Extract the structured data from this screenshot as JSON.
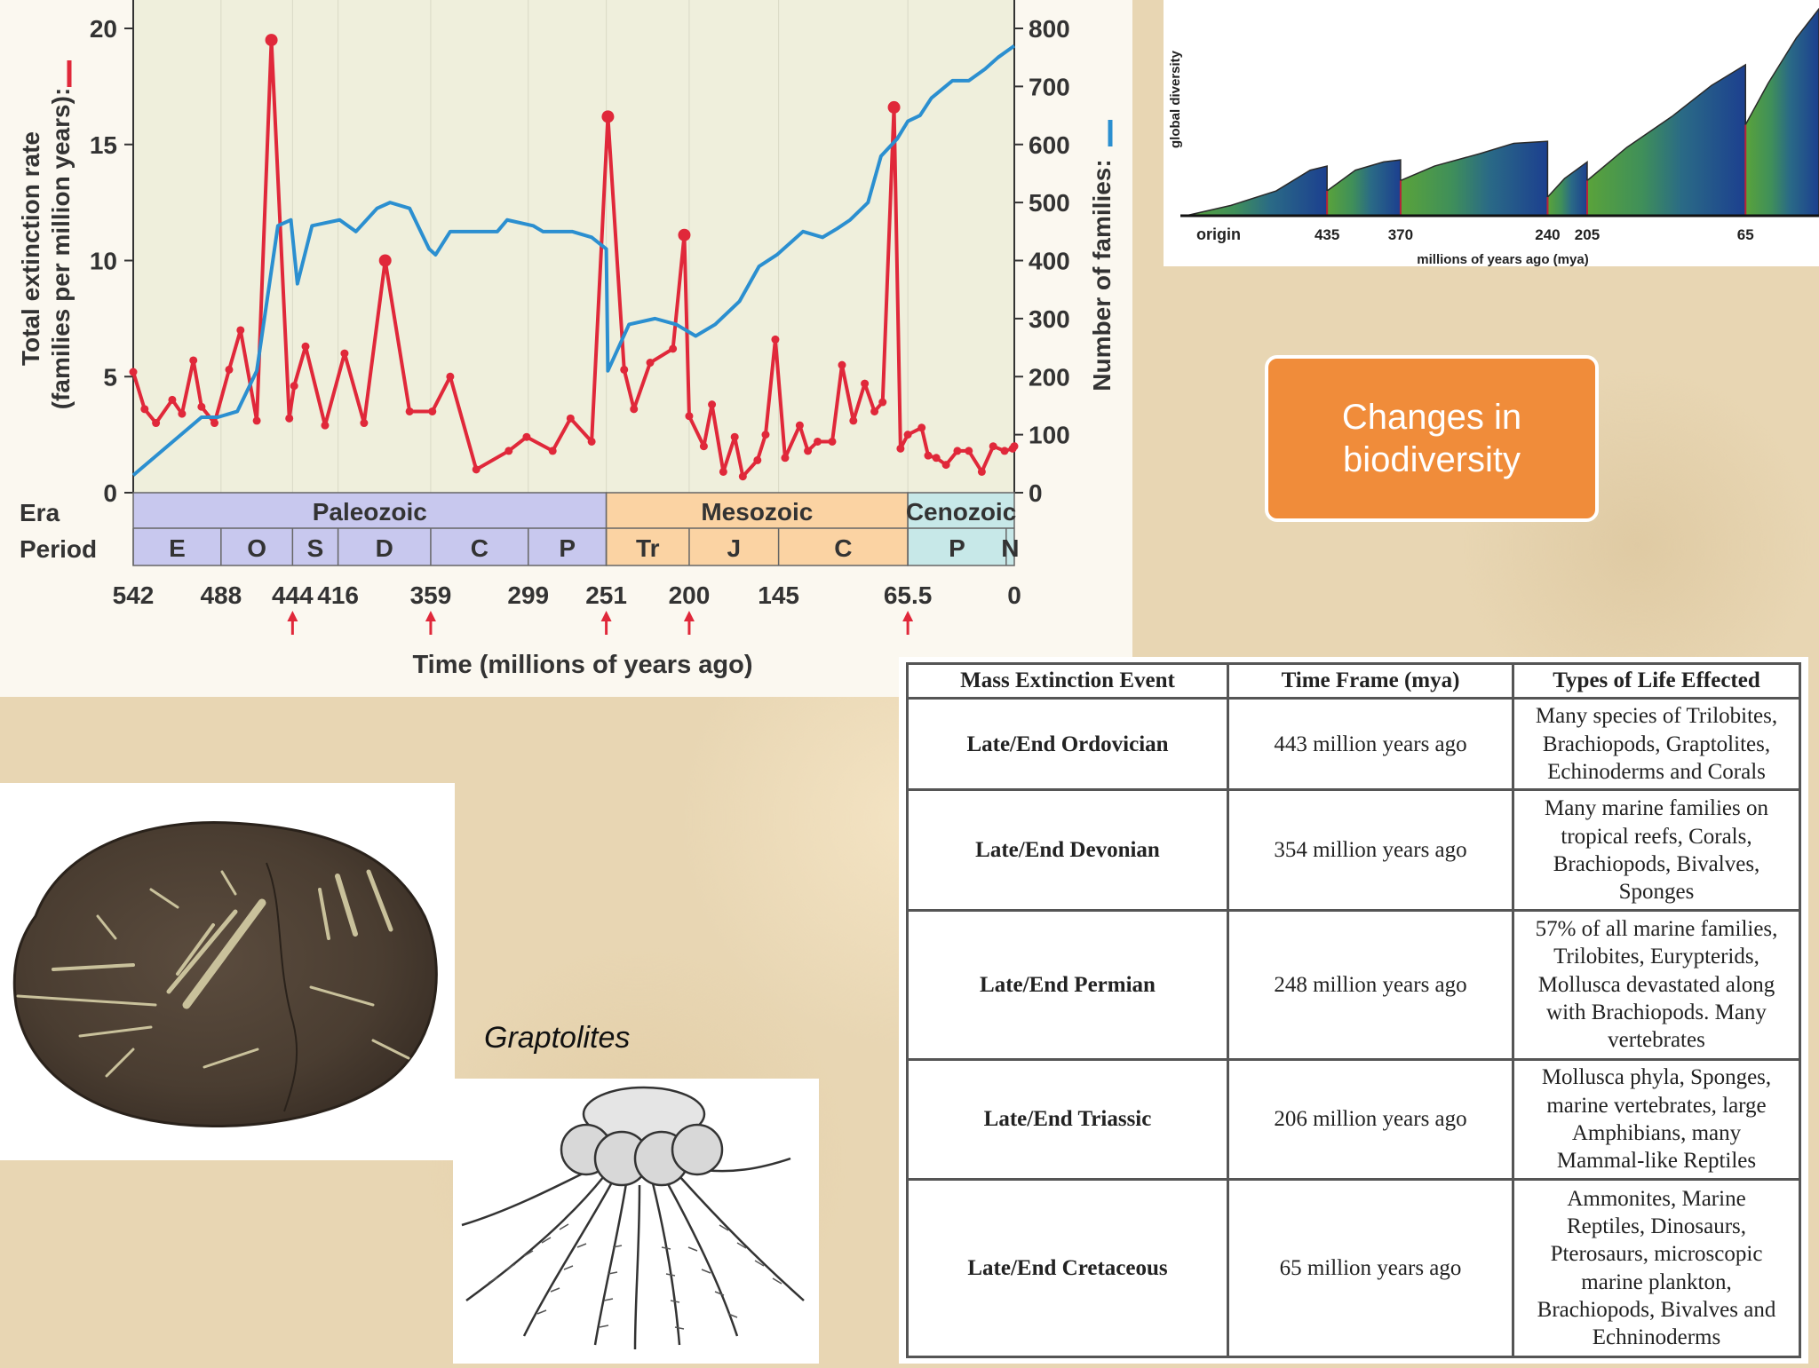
{
  "chart_data": [
    {
      "type": "line",
      "xlabel": "Time (millions of years ago)",
      "ylabel_left": [
        "Total extinction rate",
        "(families per million years):"
      ],
      "ylabel_right": "Number of families:",
      "x_ticks": [
        "542",
        "488",
        "444",
        "416",
        "359",
        "299",
        "251",
        "200",
        "145",
        "65.5",
        "0"
      ],
      "y_left_ticks": [
        "0",
        "5",
        "10",
        "15",
        "20"
      ],
      "y_right_ticks": [
        "0",
        "100",
        "200",
        "300",
        "400",
        "500",
        "600",
        "700",
        "800"
      ],
      "xlim": [
        542,
        0
      ],
      "ylim_left": [
        0,
        20
      ],
      "ylim_right": [
        0,
        800
      ],
      "arrows_at": [
        444,
        359,
        251,
        200,
        65.5
      ],
      "era_row_label": "Era",
      "period_row_label": "Period",
      "eras": [
        {
          "name": "Paleozoic",
          "start": 542,
          "end": 251,
          "color": "#c8c8ee"
        },
        {
          "name": "Mesozoic",
          "start": 251,
          "end": 65.5,
          "color": "#fbd3a3"
        },
        {
          "name": "Cenozoic",
          "start": 65.5,
          "end": 0,
          "color": "#c7e8e8"
        }
      ],
      "periods": [
        {
          "name": "E",
          "start": 542,
          "end": 488
        },
        {
          "name": "O",
          "start": 488,
          "end": 444
        },
        {
          "name": "S",
          "start": 444,
          "end": 416
        },
        {
          "name": "D",
          "start": 416,
          "end": 359
        },
        {
          "name": "C",
          "start": 359,
          "end": 299
        },
        {
          "name": "P",
          "start": 299,
          "end": 251
        },
        {
          "name": "Tr",
          "start": 251,
          "end": 200
        },
        {
          "name": "J",
          "start": 200,
          "end": 145
        },
        {
          "name": "C",
          "start": 145,
          "end": 65.5
        },
        {
          "name": "P",
          "start": 65.5,
          "end": 5
        },
        {
          "name": "N",
          "start": 5,
          "end": 0
        }
      ],
      "series": [
        {
          "color": "#e0283a",
          "axis": "left",
          "markers": true,
          "x": [
            542,
            535,
            528,
            518,
            512,
            505,
            500,
            492,
            483,
            476,
            466,
            457,
            446,
            443,
            436,
            424,
            412,
            400,
            387,
            372,
            358,
            347,
            331,
            311,
            300,
            284,
            273,
            260,
            250,
            240,
            234,
            224,
            210,
            203,
            200,
            191,
            186,
            179,
            172,
            167,
            158,
            153,
            147,
            141,
            132,
            127,
            121,
            112,
            106,
            99,
            92,
            86,
            81,
            74,
            70,
            65.5,
            57,
            53,
            48,
            42,
            35,
            28,
            20,
            13,
            6,
            1,
            0
          ],
          "values": [
            5.2,
            3.6,
            3.0,
            4.0,
            3.4,
            5.7,
            3.7,
            3.0,
            5.3,
            7.0,
            3.1,
            19.5,
            3.2,
            4.6,
            6.3,
            2.9,
            6.0,
            3.0,
            10.0,
            3.5,
            3.5,
            5.0,
            1.0,
            1.8,
            2.4,
            1.8,
            3.2,
            2.2,
            16.2,
            5.3,
            3.6,
            5.6,
            6.2,
            11.1,
            3.3,
            2.0,
            3.8,
            0.9,
            2.4,
            0.7,
            1.4,
            2.5,
            6.6,
            1.5,
            2.9,
            1.8,
            2.2,
            2.2,
            5.5,
            3.1,
            4.7,
            3.5,
            3.9,
            16.6,
            1.9,
            2.5,
            2.8,
            1.6,
            1.5,
            1.2,
            1.8,
            1.8,
            0.9,
            2.0,
            1.8,
            1.9,
            2.0
          ]
        },
        {
          "color": "#2b8fd0",
          "axis": "right",
          "markers": false,
          "x": [
            542,
            500,
            490,
            478,
            466,
            453,
            445,
            441,
            432,
            415,
            405,
            392,
            384,
            372,
            360,
            356,
            347,
            336,
            318,
            312,
            296,
            290,
            272,
            260,
            251,
            250,
            237,
            221,
            208,
            196,
            184,
            169,
            157,
            146,
            130,
            118,
            109,
            101,
            90,
            82,
            72,
            65.5,
            58,
            51,
            38,
            28,
            18,
            10,
            5,
            0
          ],
          "values": [
            30,
            130,
            130,
            140,
            210,
            460,
            470,
            360,
            460,
            470,
            450,
            490,
            500,
            490,
            420,
            410,
            450,
            450,
            450,
            470,
            460,
            450,
            450,
            440,
            420,
            210,
            290,
            300,
            290,
            270,
            290,
            330,
            390,
            410,
            450,
            440,
            455,
            470,
            500,
            580,
            610,
            640,
            650,
            680,
            710,
            710,
            730,
            750,
            760,
            770
          ]
        }
      ]
    },
    {
      "type": "area",
      "ylabel": "global diversity",
      "xlabel": "millions of years ago (mya)",
      "x_ticks": [
        "origin",
        "435",
        "370",
        "240",
        "205",
        "65"
      ],
      "segments": [
        {
          "x": [
            560,
            520,
            480,
            450,
            435
          ],
          "values": [
            0.0,
            0.05,
            0.12,
            0.22,
            0.24
          ]
        },
        {
          "x": [
            435,
            410,
            385,
            370
          ],
          "values": [
            0.12,
            0.22,
            0.26,
            0.27
          ]
        },
        {
          "x": [
            370,
            340,
            300,
            270,
            240
          ],
          "values": [
            0.17,
            0.24,
            0.3,
            0.35,
            0.36
          ]
        },
        {
          "x": [
            240,
            225,
            205
          ],
          "values": [
            0.09,
            0.18,
            0.26
          ]
        },
        {
          "x": [
            205,
            170,
            130,
            95,
            65
          ],
          "values": [
            0.17,
            0.33,
            0.48,
            0.63,
            0.73
          ]
        },
        {
          "x": [
            65,
            45,
            20,
            0
          ],
          "values": [
            0.44,
            0.64,
            0.86,
            1.0
          ]
        }
      ],
      "extinction_lines": [
        435,
        370,
        240,
        205,
        65
      ]
    }
  ],
  "title_box": {
    "line1": "Changes in",
    "line2": "biodiversity"
  },
  "caption": "Graptolites",
  "table": {
    "headers": [
      "Mass Extinction Event",
      "Time Frame (mya)",
      "Types of Life Effected"
    ],
    "rows": [
      {
        "event": "Late/End Ordovician",
        "time": "443 million years ago",
        "life": [
          "Many species of Trilobites,",
          "Brachiopods, Graptolites,",
          "Echinoderms and Corals"
        ]
      },
      {
        "event": "Late/End Devonian",
        "time": "354 million years ago",
        "life": [
          "Many marine families on",
          "tropical reefs, Corals,",
          "Brachiopods, Bivalves,",
          "Sponges"
        ]
      },
      {
        "event": "Late/End Permian",
        "time": "248 million years ago",
        "life": [
          "57% of all marine families,",
          "Trilobites, Eurypterids,",
          "Mollusca devastated along",
          "with Brachiopods.  Many",
          "vertebrates"
        ]
      },
      {
        "event": "Late/End Triassic",
        "time": "206 million years ago",
        "life": [
          "Mollusca phyla, Sponges,",
          "marine vertebrates, large",
          "Amphibians, many",
          "Mammal-like Reptiles"
        ]
      },
      {
        "event": "Late/End Cretaceous",
        "time": "65 million years ago",
        "life": [
          "Ammonites, Marine",
          "Reptiles, Dinosaurs,",
          "Pterosaurs, microscopic",
          "marine plankton,",
          "Brachiopods, Bivalves and",
          "Echninoderms"
        ]
      }
    ]
  }
}
